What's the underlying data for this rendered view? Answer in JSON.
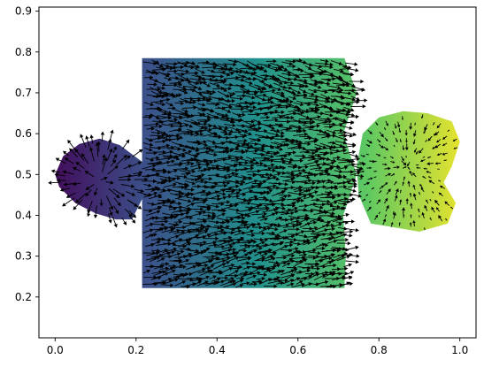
{
  "chart_data": {
    "type": "quiver",
    "title": "",
    "xlabel": "",
    "ylabel": "",
    "xlim": [
      -0.04,
      1.04
    ],
    "ylim": [
      0.1,
      0.91
    ],
    "x_ticks": [
      0.0,
      0.2,
      0.4,
      0.6,
      0.8,
      1.0
    ],
    "x_tick_labels": [
      "0.0",
      "0.2",
      "0.4",
      "0.6",
      "0.8",
      "1.0"
    ],
    "y_ticks": [
      0.2,
      0.3,
      0.4,
      0.5,
      0.6,
      0.7,
      0.8,
      0.9
    ],
    "y_tick_labels": [
      "0.2",
      "0.3",
      "0.4",
      "0.5",
      "0.6",
      "0.7",
      "0.8",
      "0.9"
    ],
    "grid": false,
    "legend": false,
    "colormap": [
      "#440154",
      "#3b528b",
      "#21918c",
      "#5ec962",
      "#fde725"
    ],
    "arrow_color": "#000000",
    "regions": [
      {
        "name": "left-blob",
        "shape": "blob",
        "center": [
          0.11,
          0.485
        ],
        "outline": [
          [
            0.0,
            0.5
          ],
          [
            0.02,
            0.545
          ],
          [
            0.06,
            0.575
          ],
          [
            0.11,
            0.588
          ],
          [
            0.16,
            0.572
          ],
          [
            0.23,
            0.52
          ],
          [
            0.22,
            0.45
          ],
          [
            0.19,
            0.39
          ],
          [
            0.15,
            0.39
          ],
          [
            0.1,
            0.405
          ],
          [
            0.05,
            0.43
          ],
          [
            0.01,
            0.47
          ]
        ],
        "field": "radial-out",
        "arrow_scale": 0.035
      },
      {
        "name": "center-block",
        "shape": "rectangle",
        "outline": [
          [
            0.215,
            0.222
          ],
          [
            0.215,
            0.785
          ],
          [
            0.715,
            0.785
          ],
          [
            0.745,
            0.7
          ],
          [
            0.712,
            0.6
          ],
          [
            0.745,
            0.5
          ],
          [
            0.712,
            0.4
          ],
          [
            0.718,
            0.3
          ],
          [
            0.715,
            0.222
          ]
        ],
        "field": "rightward-converge",
        "arrow_scale": 0.028
      },
      {
        "name": "right-blob",
        "shape": "blob",
        "center": [
          0.87,
          0.52
        ],
        "outline": [
          [
            0.745,
            0.52
          ],
          [
            0.76,
            0.6
          ],
          [
            0.8,
            0.64
          ],
          [
            0.86,
            0.655
          ],
          [
            0.92,
            0.65
          ],
          [
            0.98,
            0.63
          ],
          [
            1.0,
            0.58
          ],
          [
            0.98,
            0.52
          ],
          [
            0.96,
            0.48
          ],
          [
            0.99,
            0.43
          ],
          [
            0.97,
            0.38
          ],
          [
            0.9,
            0.36
          ],
          [
            0.84,
            0.37
          ],
          [
            0.78,
            0.38
          ],
          [
            0.75,
            0.45
          ]
        ],
        "field": "radial-in",
        "arrow_scale": 0.02
      }
    ]
  }
}
